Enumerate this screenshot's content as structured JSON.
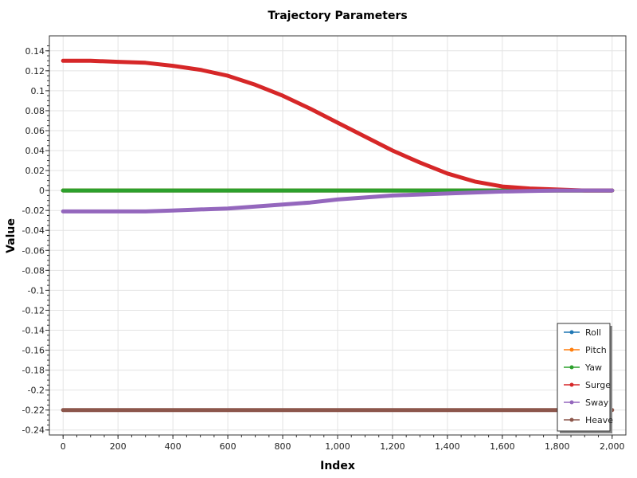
{
  "chart_data": {
    "type": "line",
    "title": "Trajectory Parameters",
    "xlabel": "Index",
    "ylabel": "Value",
    "xlim": [
      -50,
      2050
    ],
    "ylim": [
      -0.245,
      0.155
    ],
    "x_ticks": [
      0,
      200,
      400,
      600,
      800,
      1000,
      1200,
      1400,
      1600,
      1800,
      2000
    ],
    "x_tick_labels": [
      "0",
      "200",
      "400",
      "600",
      "800",
      "1,000",
      "1,200",
      "1,400",
      "1,600",
      "1,800",
      "2,000"
    ],
    "y_ticks": [
      0.14,
      0.12,
      0.1,
      0.08,
      0.06,
      0.04,
      0.02,
      0,
      -0.02,
      -0.04,
      -0.06,
      -0.08,
      -0.1,
      -0.12,
      -0.14,
      -0.16,
      -0.18,
      -0.2,
      -0.22,
      -0.24
    ],
    "y_tick_labels": [
      "0.14",
      "0.12",
      "0.1",
      "0.08",
      "0.06",
      "0.04",
      "0.02",
      "0",
      "-0.02",
      "-0.04",
      "-0.06",
      "-0.08",
      "-0.1",
      "-0.12",
      "-0.14",
      "-0.16",
      "-0.18",
      "-0.2",
      "-0.22",
      "-0.24"
    ],
    "grid": true,
    "legend_position": "bottom-right",
    "x": [
      0,
      100,
      200,
      300,
      400,
      500,
      600,
      700,
      800,
      900,
      1000,
      1100,
      1200,
      1300,
      1400,
      1500,
      1600,
      1700,
      1800,
      1900,
      2000
    ],
    "series": [
      {
        "name": "Roll",
        "color": "#1f77b4",
        "values": [
          0,
          0,
          0,
          0,
          0,
          0,
          0,
          0,
          0,
          0,
          0,
          0,
          0,
          0,
          0,
          0,
          0,
          0,
          0,
          0,
          0
        ]
      },
      {
        "name": "Pitch",
        "color": "#ff7f0e",
        "values": [
          0,
          0,
          0,
          0,
          0,
          0,
          0,
          0,
          0,
          0,
          0,
          0,
          0,
          0,
          0,
          0,
          0,
          0,
          0,
          0,
          0
        ]
      },
      {
        "name": "Yaw",
        "color": "#2ca02c",
        "values": [
          0,
          0,
          0,
          0,
          0,
          0,
          0,
          0,
          0,
          0,
          0,
          0,
          0,
          0,
          0,
          0,
          0,
          0,
          0,
          0,
          0
        ]
      },
      {
        "name": "Surge",
        "color": "#d62728",
        "values": [
          0.13,
          0.13,
          0.129,
          0.128,
          0.125,
          0.121,
          0.115,
          0.106,
          0.095,
          0.082,
          0.068,
          0.054,
          0.04,
          0.028,
          0.017,
          0.009,
          0.004,
          0.002,
          0.001,
          0.0,
          0.0
        ]
      },
      {
        "name": "Sway",
        "color": "#9467bd",
        "values": [
          -0.021,
          -0.021,
          -0.021,
          -0.021,
          -0.02,
          -0.019,
          -0.018,
          -0.016,
          -0.014,
          -0.012,
          -0.009,
          -0.007,
          -0.005,
          -0.004,
          -0.003,
          -0.002,
          -0.001,
          -0.0005,
          0,
          0,
          0
        ]
      },
      {
        "name": "Heave",
        "color": "#8c564b",
        "values": [
          -0.22,
          -0.22,
          -0.22,
          -0.22,
          -0.22,
          -0.22,
          -0.22,
          -0.22,
          -0.22,
          -0.22,
          -0.22,
          -0.22,
          -0.22,
          -0.22,
          -0.22,
          -0.22,
          -0.22,
          -0.22,
          -0.22,
          -0.22,
          -0.22
        ]
      }
    ]
  }
}
